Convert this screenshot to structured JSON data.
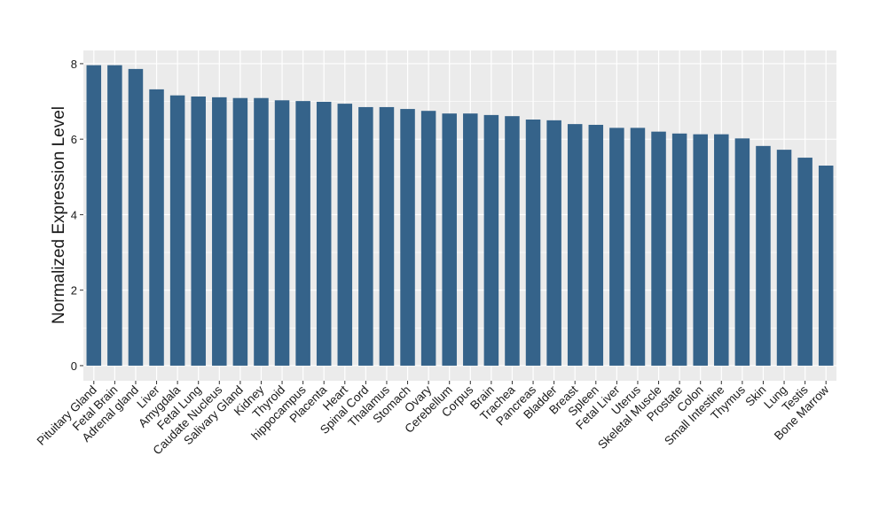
{
  "colors": {
    "bar": "#35638A",
    "panel_bg": "#EBEBEB",
    "grid_major": "#FFFFFF",
    "axis_text": "#1A1A1A",
    "tick": "#333333"
  },
  "chart_data": {
    "type": "bar",
    "title": "",
    "xlabel": "",
    "ylabel": "Normalized Expression Level",
    "ylim": [
      -0.4,
      8.35
    ],
    "yticks": [
      0,
      2,
      4,
      6,
      8
    ],
    "grid": true,
    "legend": "none",
    "categories": [
      "Pituitary Gland",
      "Fetal Brain",
      "Adrenal gland",
      "Liver",
      "Amygdala",
      "Fetal Lung",
      "Caudate Nucleus",
      "Salivary Gland",
      "Kidney",
      "Thyroid",
      "hippocampus",
      "Placenta",
      "Heart",
      "Spinal Cord",
      "Thalamus",
      "Stomach",
      "Ovary",
      "Cerebellum",
      "Corpus",
      "Brain",
      "Trachea",
      "Pancreas",
      "Bladder",
      "Breast",
      "Spleen",
      "Fetal Liver",
      "Uterus",
      "Skeletal Muscle",
      "Prostate",
      "Colon",
      "Small Intestine",
      "Thymus",
      "Skin",
      "Lung",
      "Testis",
      "Bone Marrow"
    ],
    "values": [
      7.96,
      7.96,
      7.86,
      7.32,
      7.16,
      7.13,
      7.11,
      7.09,
      7.09,
      7.03,
      7.01,
      6.99,
      6.94,
      6.85,
      6.85,
      6.8,
      6.75,
      6.68,
      6.68,
      6.64,
      6.61,
      6.52,
      6.5,
      6.4,
      6.38,
      6.3,
      6.3,
      6.2,
      6.15,
      6.13,
      6.13,
      6.02,
      5.82,
      5.72,
      5.51,
      5.3
    ]
  }
}
